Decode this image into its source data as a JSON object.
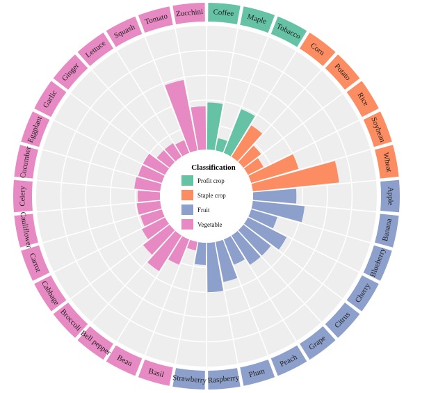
{
  "chart_data": {
    "type": "circular-bar",
    "legend": {
      "title": "Classification",
      "items": [
        {
          "name": "Profit crop",
          "color": "#66c2a5"
        },
        {
          "name": "Staple crop",
          "color": "#fc8d62"
        },
        {
          "name": "Fruit",
          "color": "#8da0cb"
        },
        {
          "name": "Vegetable",
          "color": "#e78ac3"
        }
      ]
    },
    "ylim": [
      0,
      100
    ],
    "categories": [
      "Coffee",
      "Maple",
      "Tobacco",
      "Corn",
      "Potato",
      "Rice",
      "Soybean",
      "Wheat",
      "Apple",
      "Banana",
      "Blueberry",
      "Cherry",
      "Citrus",
      "Grape",
      "Peach",
      "Plum",
      "Raspberry",
      "Strawberry",
      "Basil",
      "Bean",
      "Bell pepper",
      "Broccoli",
      "Cabbage",
      "Carrot",
      "Cauliflower",
      "Celery",
      "Cucumber",
      "Eggplant",
      "Garlic",
      "Ginger",
      "Lettuce",
      "Squash",
      "Tomato",
      "Zucchini"
    ],
    "groups": [
      "Profit crop",
      "Profit crop",
      "Profit crop",
      "Staple crop",
      "Staple crop",
      "Staple crop",
      "Staple crop",
      "Staple crop",
      "Fruit",
      "Fruit",
      "Fruit",
      "Fruit",
      "Fruit",
      "Fruit",
      "Fruit",
      "Fruit",
      "Fruit",
      "Fruit",
      "Vegetable",
      "Vegetable",
      "Vegetable",
      "Vegetable",
      "Vegetable",
      "Vegetable",
      "Vegetable",
      "Vegetable",
      "Vegetable",
      "Vegetable",
      "Vegetable",
      "Vegetable",
      "Vegetable",
      "Vegetable",
      "Vegetable",
      "Vegetable"
    ],
    "values": [
      38,
      10,
      38,
      30,
      18,
      14,
      40,
      70,
      35,
      42,
      22,
      35,
      28,
      28,
      22,
      33,
      40,
      18,
      7,
      22,
      34,
      27,
      21,
      18,
      19,
      18,
      21,
      20,
      20,
      13,
      13,
      11,
      58,
      35
    ]
  }
}
